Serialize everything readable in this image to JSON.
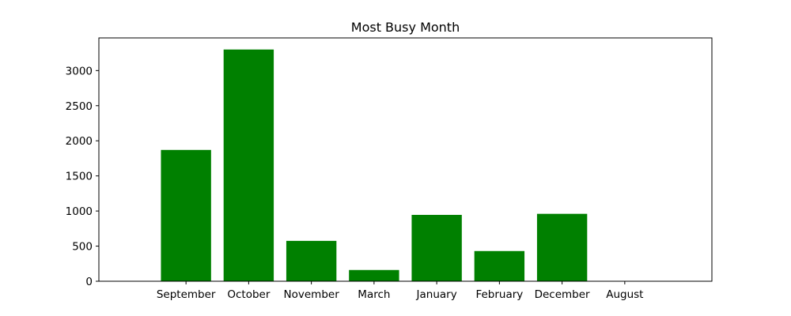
{
  "chart_data": {
    "type": "bar",
    "title": "Most Busy Month",
    "xlabel": "",
    "ylabel": "",
    "categories": [
      "September",
      "October",
      "November",
      "March",
      "January",
      "February",
      "December",
      "August"
    ],
    "values": [
      1870,
      3300,
      575,
      160,
      945,
      430,
      960,
      5
    ],
    "ylim": [
      0,
      3465
    ],
    "yticks": [
      0,
      500,
      1000,
      1500,
      2000,
      2500,
      3000
    ],
    "bar_color": "#008000",
    "grid": false,
    "legend": "none"
  }
}
